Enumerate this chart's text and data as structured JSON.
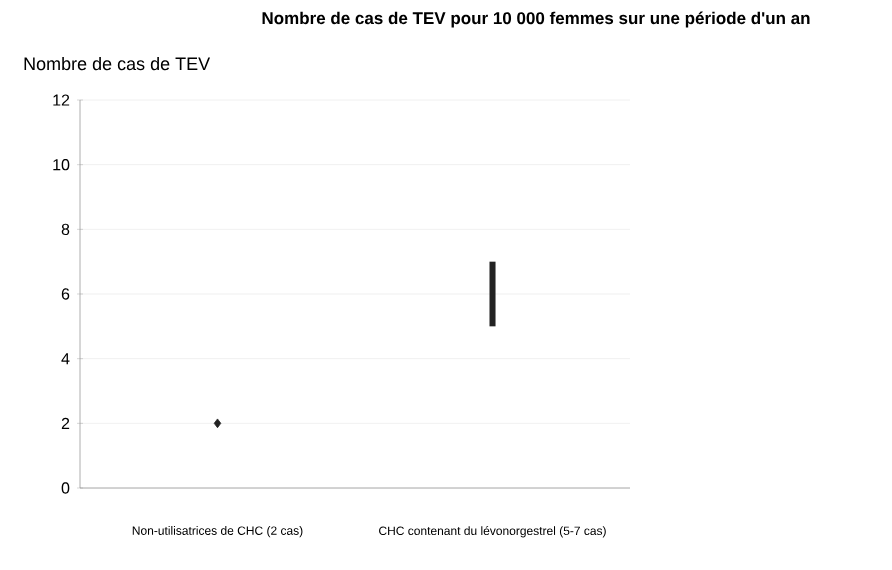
{
  "chart_data": {
    "type": "scatter",
    "title": "Nombre de cas de TEV pour 10 000 femmes sur une période d'un an",
    "ylabel": "Nombre de cas de TEV",
    "categories": [
      "Non-utilisatrices de CHC (2 cas)",
      "CHC contenant du lévonorgestrel (5-7 cas)"
    ],
    "series": [
      {
        "color": "#222222",
        "marker": "diamond",
        "values": [
          2,
          null
        ]
      },
      {
        "type": "bar",
        "color": "#222222",
        "base": [
          null,
          5
        ],
        "values": [
          null,
          2
        ]
      }
    ],
    "ylim": [
      0,
      12
    ],
    "yticks": [
      0,
      2,
      4,
      6,
      8,
      10,
      12
    ],
    "grid": "y"
  }
}
